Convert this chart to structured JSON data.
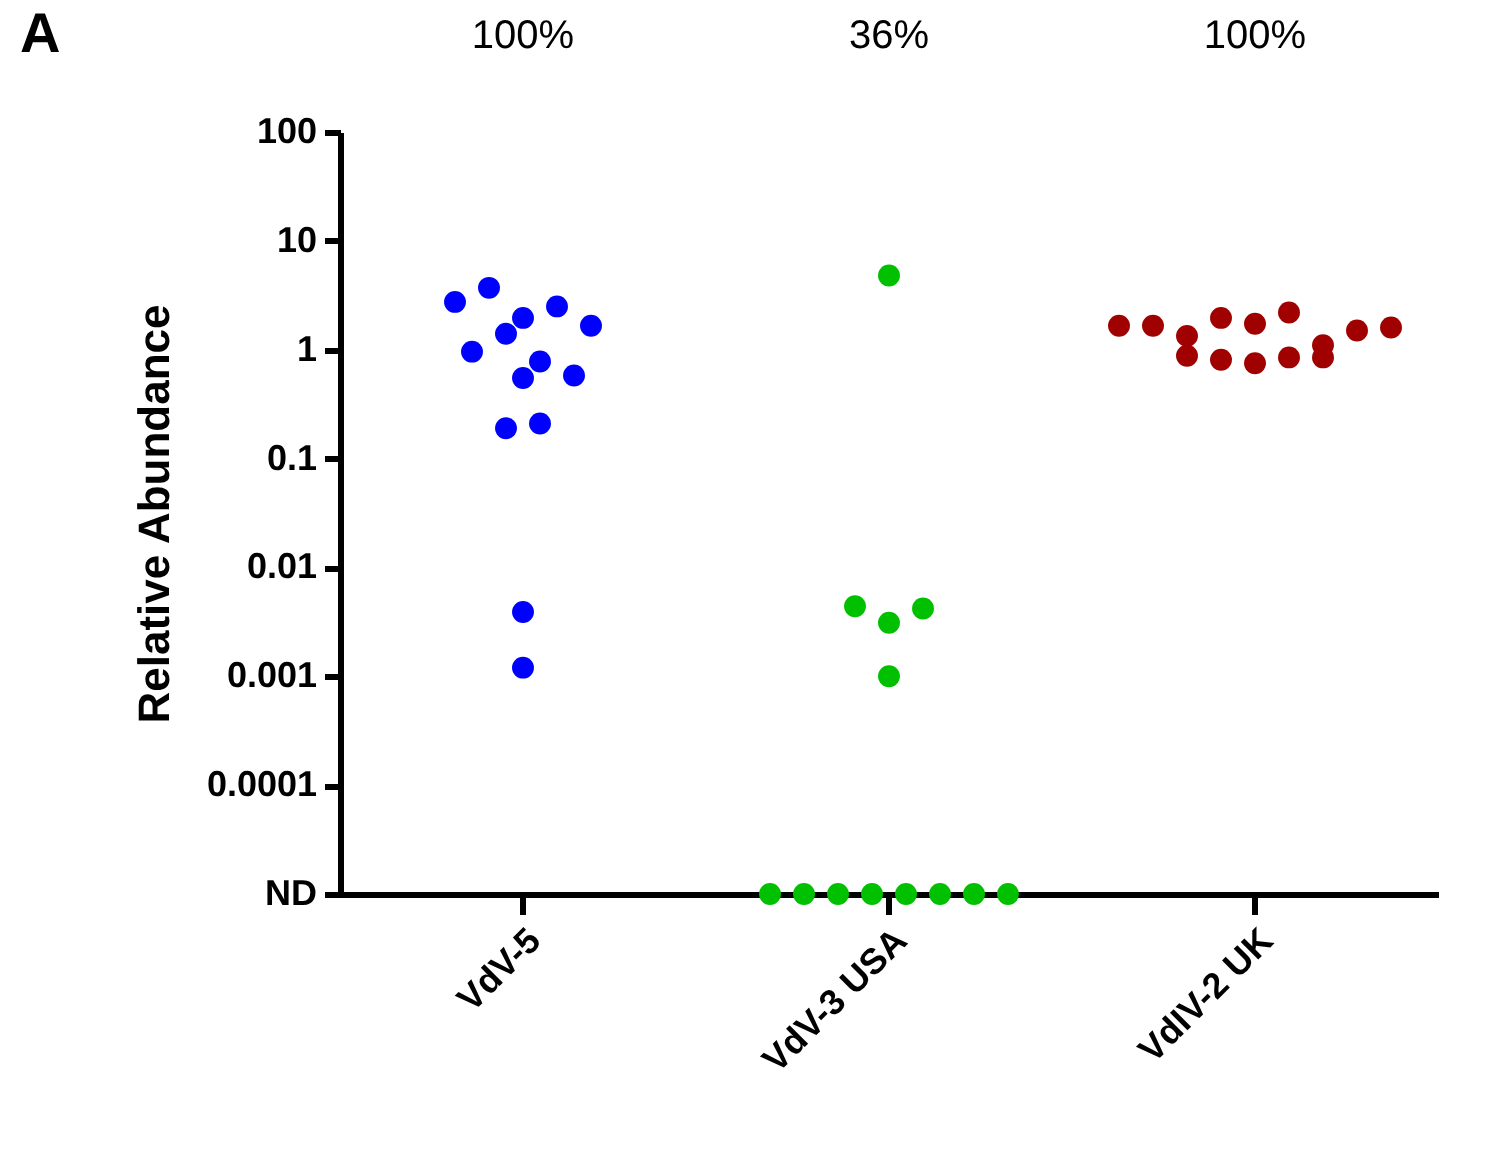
{
  "chart_data": {
    "type": "scatter",
    "title": "A",
    "ylabel": "Relative Abundance",
    "categories": [
      "VdV-5",
      "VdV-3 USA",
      "VdIV-2 UK"
    ],
    "annotations": [
      "100%",
      "36%",
      "100%"
    ],
    "log": "y",
    "ylim": [
      1e-05,
      100
    ],
    "yticks": [
      {
        "value": 1e-05,
        "label": "ND"
      },
      0.0001,
      0.001,
      0.01,
      0.1,
      1,
      10,
      100
    ],
    "grid": false,
    "legend": false,
    "marker": "circle",
    "series": [
      {
        "color": "#0000ff",
        "x": [
          "VdV-5",
          "VdV-5",
          "VdV-5",
          "VdV-5",
          "VdV-5",
          "VdV-5",
          "VdV-5",
          "VdV-5",
          "VdV-5",
          "VdV-5",
          "VdV-5",
          "VdV-5",
          "VdV-5",
          "VdV-5"
        ],
        "values": [
          2.75,
          3.7,
          1.96,
          2.5,
          1.66,
          0.96,
          1.4,
          0.78,
          0.58,
          0.55,
          0.19,
          0.21,
          0.0039,
          0.0012
        ]
      },
      {
        "color": "#00c000",
        "x": [
          "VdV-3 USA",
          "VdV-3 USA",
          "VdV-3 USA",
          "VdV-3 USA",
          "VdV-3 USA",
          "VdV-3 USA",
          "VdV-3 USA",
          "VdV-3 USA",
          "VdV-3 USA",
          "VdV-3 USA",
          "VdV-3 USA",
          "VdV-3 USA",
          "VdV-3 USA"
        ],
        "values": [
          4.8,
          0.0044,
          0.0031,
          0.0042,
          0.001,
          1e-05,
          1e-05,
          1e-05,
          1e-05,
          1e-05,
          1e-05,
          1e-05,
          1e-05
        ]
      },
      {
        "color": "#a00000",
        "x": [
          "VdIV-2 UK",
          "VdIV-2 UK",
          "VdIV-2 UK",
          "VdIV-2 UK",
          "VdIV-2 UK",
          "VdIV-2 UK",
          "VdIV-2 UK",
          "VdIV-2 UK",
          "VdIV-2 UK",
          "VdIV-2 UK",
          "VdIV-2 UK",
          "VdIV-2 UK",
          "VdIV-2 UK",
          "VdIV-2 UK"
        ],
        "values": [
          1.66,
          1.66,
          1.34,
          1.96,
          1.73,
          2.2,
          0.88,
          0.81,
          0.75,
          0.85,
          0.85,
          1.1,
          1.5,
          1.6
        ]
      }
    ]
  }
}
